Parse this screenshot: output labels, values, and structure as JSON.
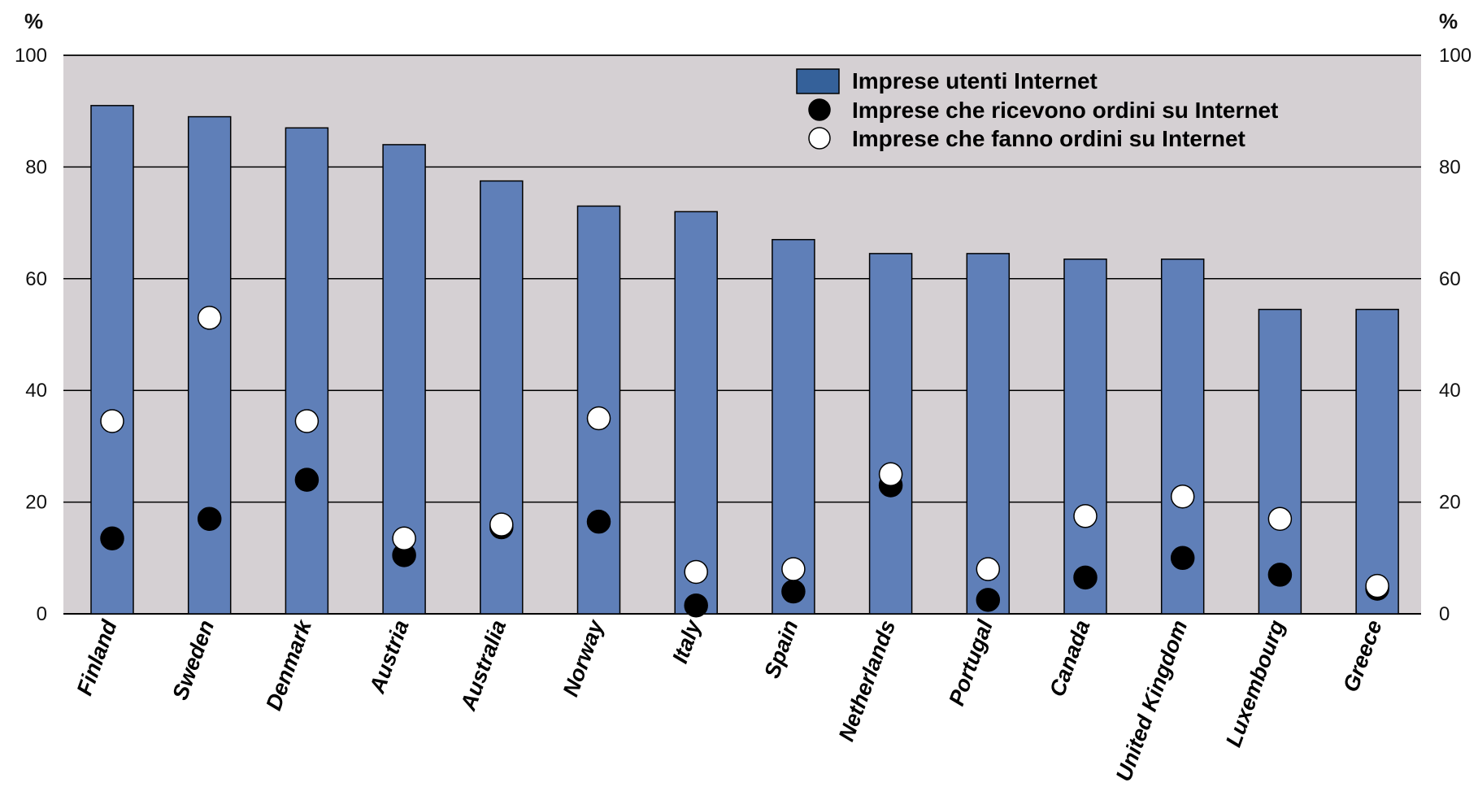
{
  "chart_data": {
    "type": "bar",
    "unit_label": "%",
    "categories": [
      "Finland",
      "Sweden",
      "Denmark",
      "Austria",
      "Australia",
      "Norway",
      "Italy",
      "Spain",
      "Netherlands",
      "Portugal",
      "Canada",
      "United Kingdom",
      "Luxembourg",
      "Greece"
    ],
    "series": [
      {
        "name": "Imprese utenti Internet",
        "kind": "bar",
        "color": "#5f7fb8",
        "values": [
          91,
          89,
          87,
          84,
          77.5,
          73,
          72,
          67,
          64.5,
          64.5,
          63.5,
          63.5,
          54.5,
          54.5
        ]
      },
      {
        "name": "Imprese che ricevono ordini su Internet",
        "kind": "marker",
        "color": "#000000",
        "values": [
          13.5,
          17,
          24,
          10.5,
          15.5,
          16.5,
          1.5,
          4,
          23,
          2.5,
          6.5,
          10,
          7,
          4.5
        ]
      },
      {
        "name": "Imprese che fanno ordini su Internet",
        "kind": "marker",
        "color": "#ffffff",
        "values": [
          34.5,
          53,
          34.5,
          13.5,
          16,
          35,
          7.5,
          8,
          25,
          8,
          17.5,
          21,
          17,
          5
        ]
      }
    ],
    "ylim": [
      0,
      100
    ],
    "yticks": [
      0,
      20,
      40,
      60,
      80,
      100
    ],
    "grid": true,
    "legend_position": "top-right",
    "legend_swatch_color": "#35619a",
    "plot_background": "#d5d0d3"
  }
}
